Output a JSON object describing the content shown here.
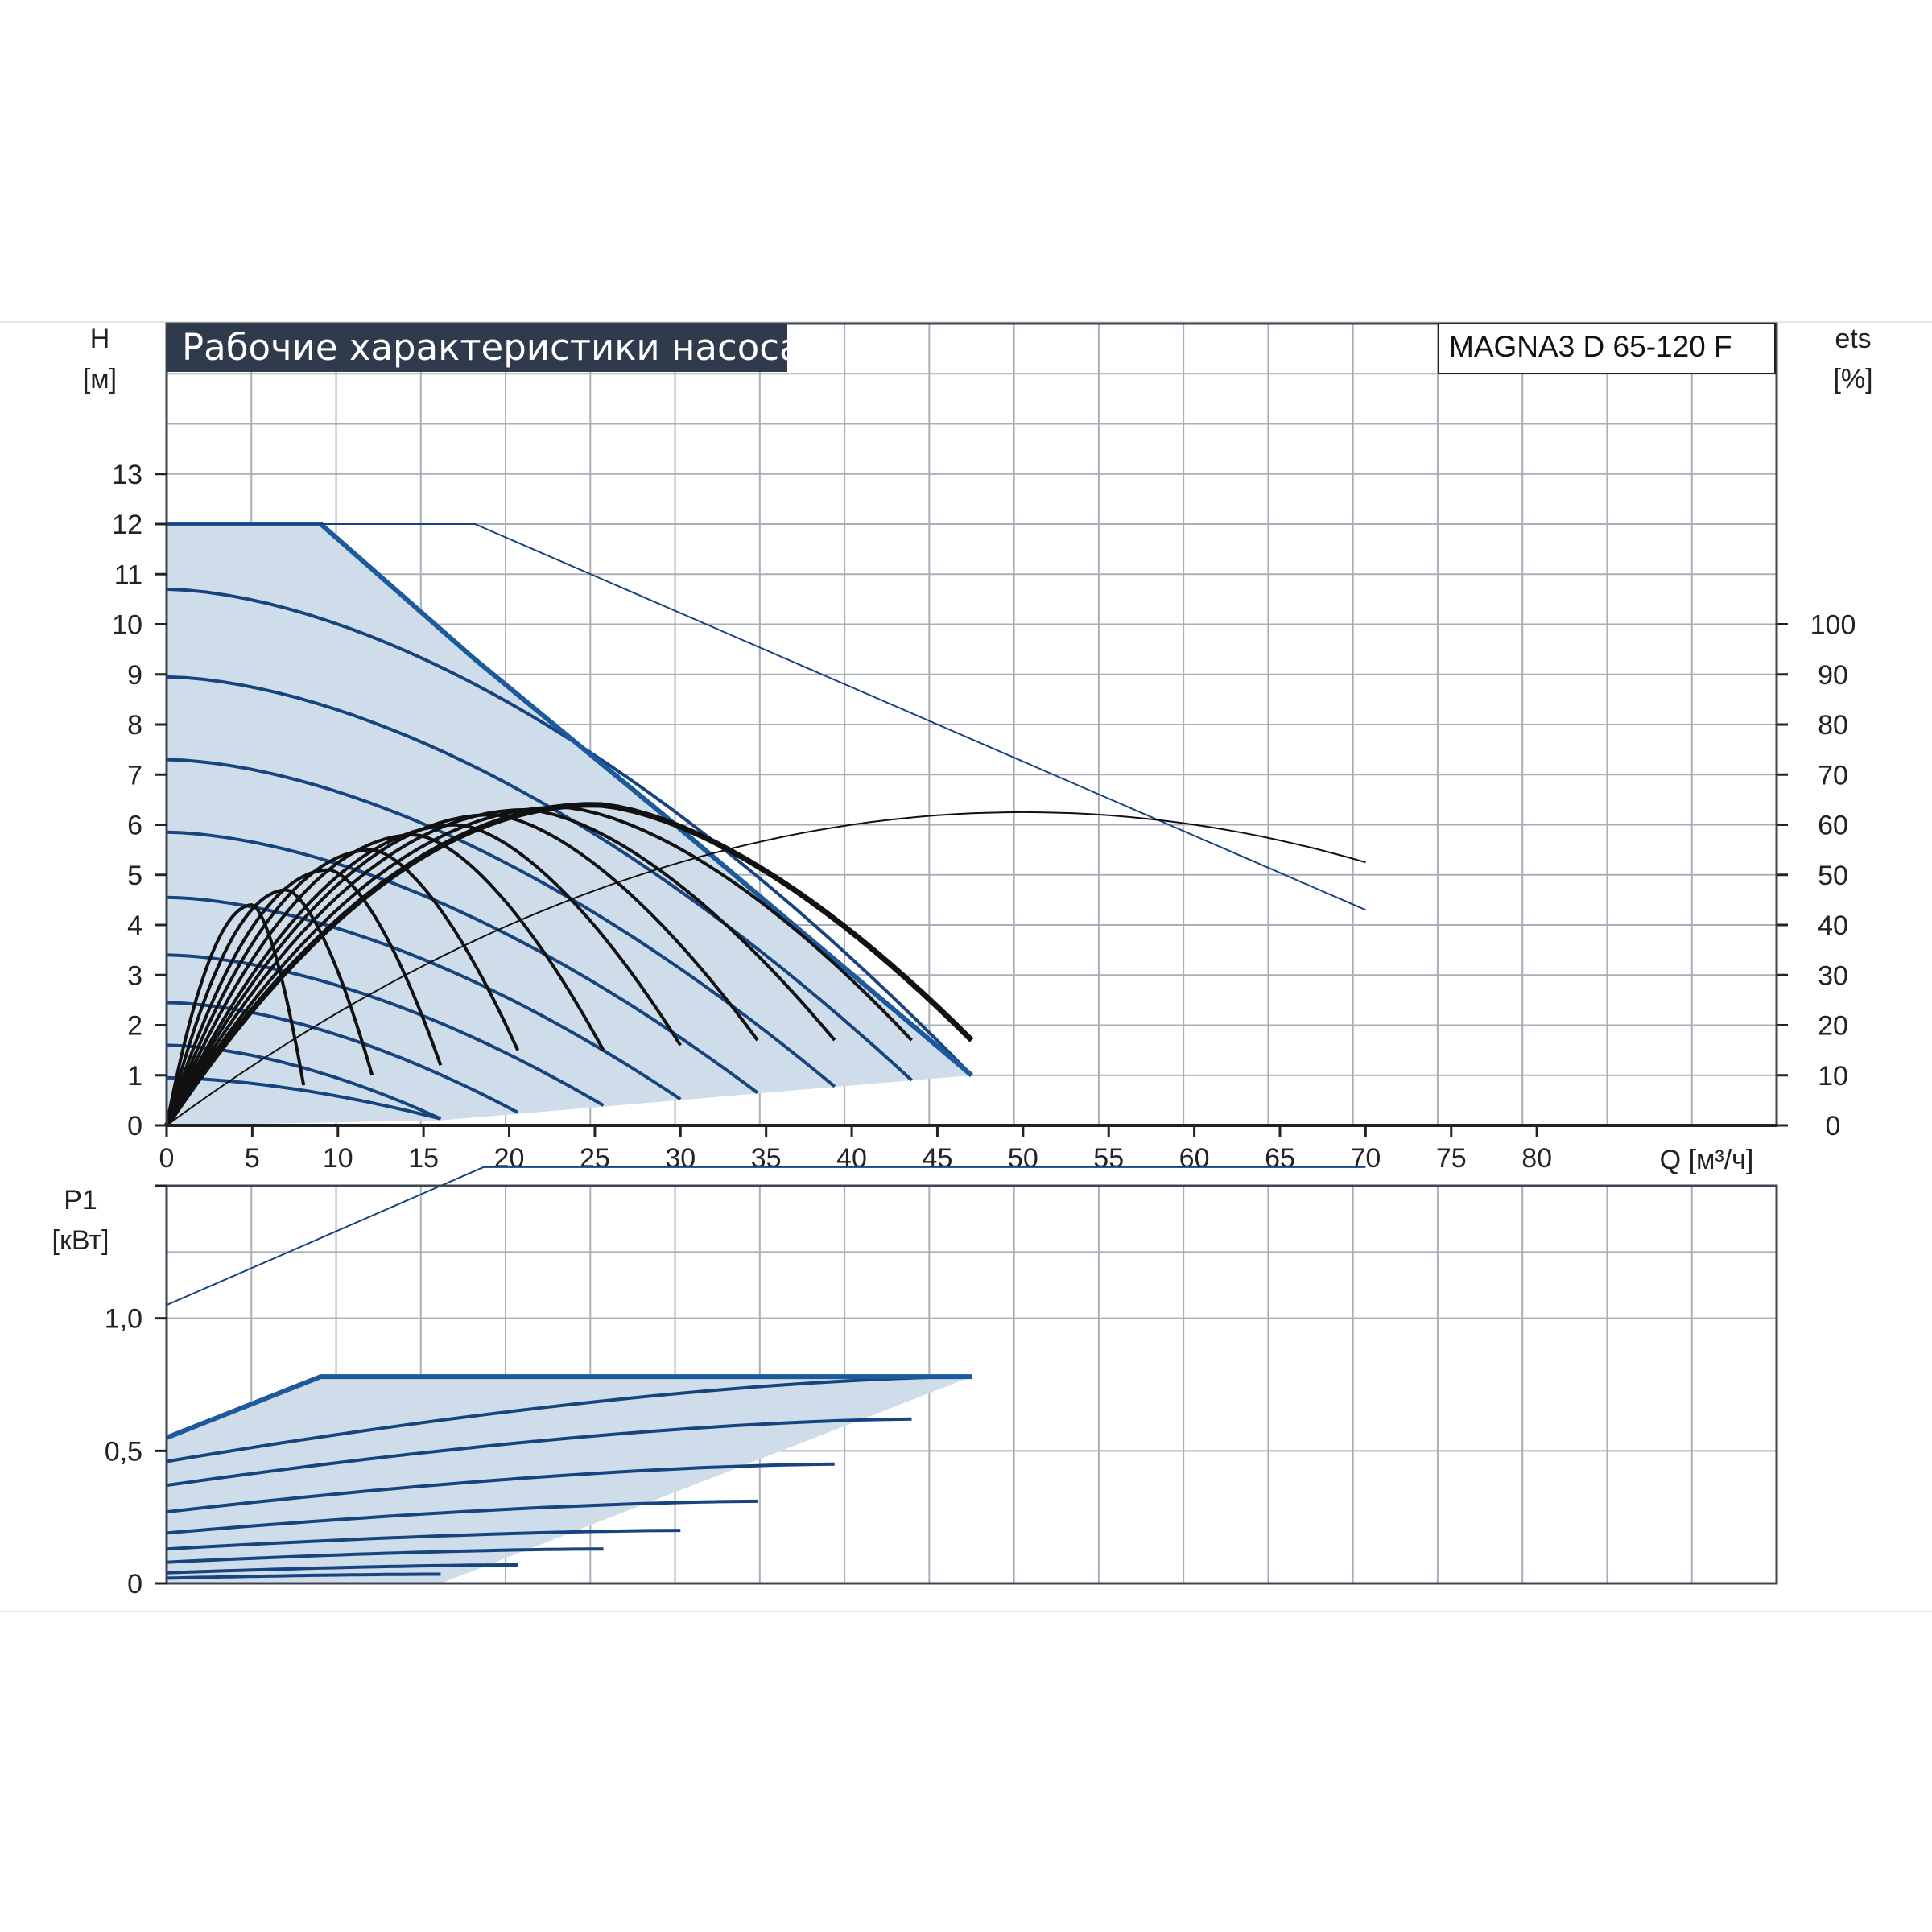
{
  "header": {
    "title": "Рабочие характеристики насоса",
    "model": "MAGNA3 D 65-120 F"
  },
  "colors": {
    "grid": "#a9afb8",
    "frame": "#3d4452",
    "title_bg": "#2f3a4d",
    "fill": "#cfdcea",
    "curve_blue": "#17447f",
    "curve_black": "#111111"
  },
  "chart_data": [
    {
      "type": "line",
      "name": "head-chart",
      "ylabel": "H",
      "yunit": "[м]",
      "y2label": "ets",
      "y2unit": "[%]",
      "xlabel": "Q [м³/ч]",
      "xticks": [
        "0",
        "5",
        "10",
        "15",
        "20",
        "25",
        "30",
        "35",
        "40",
        "45",
        "50",
        "55",
        "60",
        "65",
        "70",
        "75",
        "80"
      ],
      "yticks": [
        "0",
        "1",
        "2",
        "3",
        "4",
        "5",
        "6",
        "7",
        "8",
        "9",
        "10",
        "11",
        "12",
        "13"
      ],
      "y2ticks": [
        "0",
        "10",
        "20",
        "30",
        "40",
        "50",
        "60",
        "70",
        "80",
        "90",
        "100"
      ],
      "xlim": [
        0,
        94
      ],
      "ylim": [
        0,
        16
      ],
      "y2lim": [
        0,
        160
      ],
      "grid": true,
      "operating_area": [
        [
          0,
          12
        ],
        [
          9,
          12
        ],
        [
          18,
          9.3
        ],
        [
          29,
          6.2
        ],
        [
          47,
          1
        ],
        [
          16,
          0.1
        ],
        [
          0,
          0
        ]
      ],
      "max_line": [
        [
          0,
          12
        ],
        [
          9,
          12
        ],
        [
          18,
          9.3
        ],
        [
          29,
          6.2
        ],
        [
          47,
          1
        ]
      ],
      "single_max_line": [
        [
          0,
          12
        ],
        [
          18,
          12
        ],
        [
          70,
          4.3
        ]
      ],
      "single_eta_curve": [
        [
          0,
          0
        ],
        [
          10,
          2.6
        ],
        [
          20,
          4.1
        ],
        [
          30,
          5.3
        ],
        [
          40,
          6
        ],
        [
          50,
          6.25
        ],
        [
          60,
          6
        ],
        [
          70,
          5.2
        ]
      ],
      "speed_head_curves": [
        {
          "h0": 10.7,
          "qmax": 47
        },
        {
          "h0": 8.95,
          "qmax": 43.5
        },
        {
          "h0": 7.3,
          "qmax": 39
        },
        {
          "h0": 5.85,
          "qmax": 34.5
        },
        {
          "h0": 4.55,
          "qmax": 30
        },
        {
          "h0": 3.4,
          "qmax": 25.5
        },
        {
          "h0": 2.45,
          "qmax": 20.5
        },
        {
          "h0": 1.6,
          "qmax": 16
        },
        {
          "h0": 0.95,
          "qmax": 16
        }
      ],
      "eta_curves": [
        {
          "qpeak": 25,
          "peak": 64,
          "qend": 47,
          "end": 17
        },
        {
          "qpeak": 23,
          "peak": 63.5,
          "qend": 43.5,
          "end": 17
        },
        {
          "qpeak": 21,
          "peak": 63,
          "qend": 39,
          "end": 17
        },
        {
          "qpeak": 19,
          "peak": 62,
          "qend": 34.5,
          "end": 17
        },
        {
          "qpeak": 17,
          "peak": 60,
          "qend": 30,
          "end": 16
        },
        {
          "qpeak": 14.5,
          "peak": 58,
          "qend": 25.5,
          "end": 15
        },
        {
          "qpeak": 12,
          "peak": 55,
          "qend": 20.5,
          "end": 15
        },
        {
          "qpeak": 9.5,
          "peak": 51,
          "qend": 16,
          "end": 12
        },
        {
          "qpeak": 7,
          "peak": 47,
          "qend": 12,
          "end": 10
        },
        {
          "qpeak": 5,
          "peak": 44,
          "qend": 8,
          "end": 8
        }
      ]
    },
    {
      "type": "line",
      "name": "power-chart",
      "ylabel": "P1",
      "yunit": "[кВт]",
      "xlim": [
        0,
        94
      ],
      "ylim": [
        0,
        1.5
      ],
      "yticks": [
        "0",
        "0,5",
        "1,0"
      ],
      "grid": true,
      "operating_area": [
        [
          0,
          0.55
        ],
        [
          9,
          0.78
        ],
        [
          47,
          0.78
        ],
        [
          16,
          0
        ],
        [
          0,
          0
        ]
      ],
      "max_line": [
        [
          0,
          0.55
        ],
        [
          9,
          0.78
        ],
        [
          47,
          0.78
        ]
      ],
      "single_max_line": [
        [
          0,
          1.05
        ],
        [
          18.5,
          1.57
        ],
        [
          70,
          1.57
        ]
      ],
      "speed_power_curves": [
        {
          "p0": 0.46,
          "pend": 0.78,
          "qmax": 47
        },
        {
          "p0": 0.37,
          "pend": 0.62,
          "qmax": 43.5
        },
        {
          "p0": 0.27,
          "pend": 0.45,
          "qmax": 39
        },
        {
          "p0": 0.19,
          "pend": 0.31,
          "qmax": 34.5
        },
        {
          "p0": 0.13,
          "pend": 0.2,
          "qmax": 30
        },
        {
          "p0": 0.08,
          "pend": 0.13,
          "qmax": 25.5
        },
        {
          "p0": 0.04,
          "pend": 0.07,
          "qmax": 20.5
        },
        {
          "p0": 0.02,
          "pend": 0.035,
          "qmax": 16
        }
      ]
    }
  ]
}
